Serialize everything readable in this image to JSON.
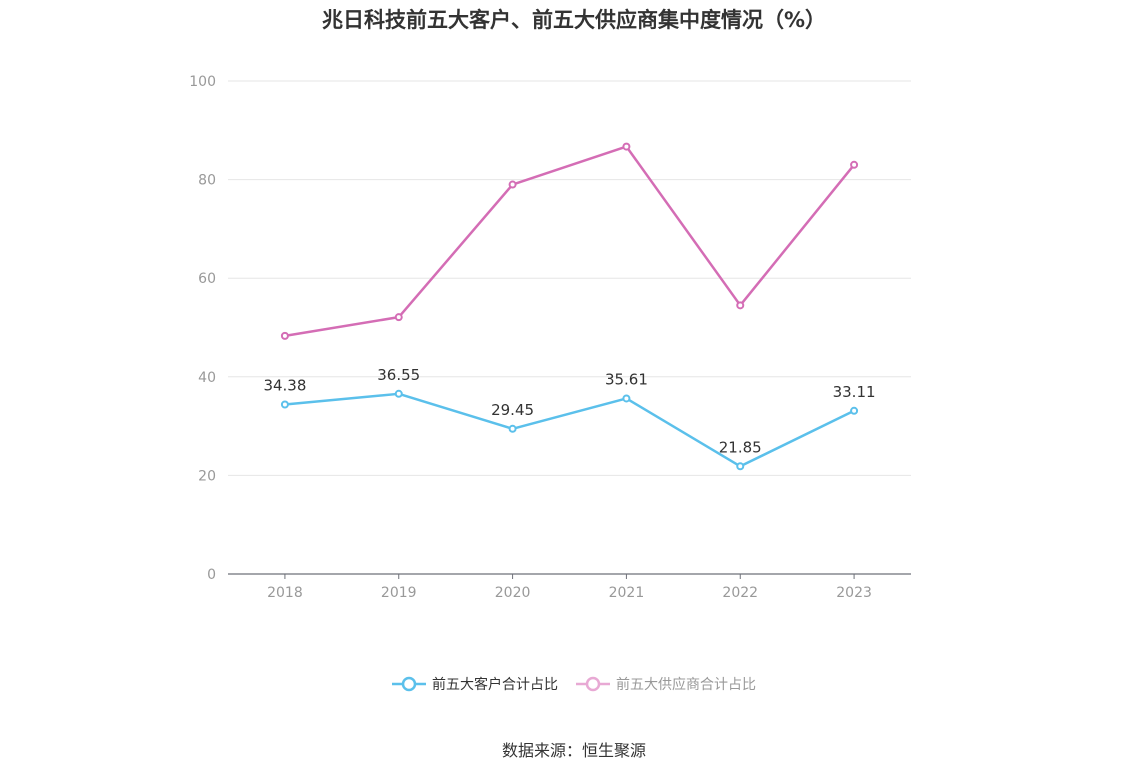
{
  "title": "兆日科技前五大客户、前五大供应商集中度情况（%）",
  "source": "数据来源：恒生聚源",
  "chart_data": {
    "type": "line",
    "categories": [
      "2018",
      "2019",
      "2020",
      "2021",
      "2022",
      "2023"
    ],
    "ylim": [
      0,
      100
    ],
    "yticks": [
      0,
      20,
      40,
      60,
      80,
      100
    ],
    "grid": true,
    "legend_position": "bottom",
    "series": [
      {
        "name": "前五大客户合计占比",
        "values": [
          34.38,
          36.55,
          29.45,
          35.61,
          21.85,
          33.11
        ],
        "labels": [
          "34.38",
          "36.55",
          "29.45",
          "35.61",
          "21.85",
          "33.11"
        ],
        "show_labels": true,
        "color": "#5bc0eb"
      },
      {
        "name": "前五大供应商合计占比",
        "values": [
          48.3,
          52.1,
          79.0,
          86.7,
          54.5,
          83.0
        ],
        "show_labels": false,
        "color": "#d46db5",
        "legend_color": "#e8a9d4"
      }
    ]
  }
}
